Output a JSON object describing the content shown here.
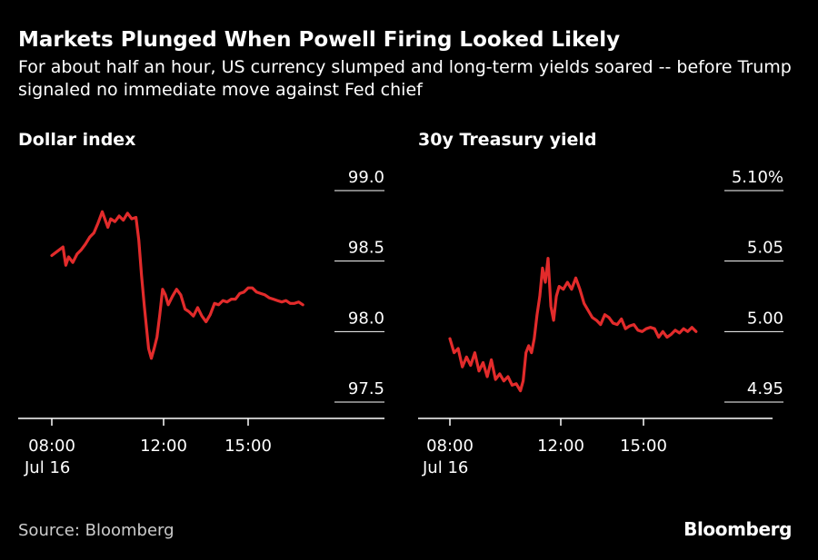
{
  "title": "Markets Plunged When Powell Firing Looked Likely",
  "subtitle": "For about half an hour, US currency slumped and long-term yields soared -- before Trump signaled no immediate move against Fed chief",
  "source": "Source: Bloomberg",
  "brand": "Bloomberg",
  "colors": {
    "background": "#000000",
    "line": "#e22b2b",
    "axis": "#ffffff",
    "text": "#ffffff"
  },
  "chart_data": [
    {
      "type": "line",
      "title": "Dollar index",
      "y_ticks": [
        "99.0",
        "98.5",
        "98.0",
        "97.5"
      ],
      "y_tick_values": [
        99.0,
        98.5,
        98.0,
        97.5
      ],
      "ylim": [
        97.5,
        99.0
      ],
      "x_ticks": [
        {
          "label": "08:00",
          "sublabel": "Jul 16",
          "hour": 8
        },
        {
          "label": "12:00",
          "sublabel": "",
          "hour": 12
        },
        {
          "label": "15:00",
          "sublabel": "",
          "hour": 15
        }
      ],
      "xlim": [
        6.9,
        19.3
      ],
      "grid": "horizontal-ticks-right",
      "series": [
        {
          "x": [
            8.0,
            8.2,
            8.4,
            8.5,
            8.6,
            8.75,
            8.9,
            9.05,
            9.2,
            9.35,
            9.5,
            9.65,
            9.8,
            10.0,
            10.1,
            10.25,
            10.4,
            10.55,
            10.7,
            10.85,
            11.0,
            11.1,
            11.2,
            11.3,
            11.38,
            11.45,
            11.55,
            11.65,
            11.75,
            11.85,
            11.95,
            12.05,
            12.15,
            12.3,
            12.45,
            12.6,
            12.75,
            12.9,
            13.05,
            13.2,
            13.35,
            13.5,
            13.65,
            13.8,
            13.95,
            14.1,
            14.25,
            14.4,
            14.55,
            14.7,
            14.85,
            15.0,
            15.15,
            15.3,
            15.45,
            15.6,
            15.75,
            15.9,
            16.05,
            16.2,
            16.35,
            16.5,
            16.65,
            16.8,
            16.95
          ],
          "y": [
            98.54,
            98.57,
            98.6,
            98.47,
            98.53,
            98.49,
            98.55,
            98.58,
            98.62,
            98.67,
            98.7,
            98.77,
            98.85,
            98.74,
            98.8,
            98.78,
            98.82,
            98.79,
            98.84,
            98.8,
            98.81,
            98.65,
            98.4,
            98.18,
            98.02,
            97.88,
            97.81,
            97.88,
            97.96,
            98.12,
            98.3,
            98.26,
            98.19,
            98.25,
            98.3,
            98.26,
            98.16,
            98.14,
            98.11,
            98.17,
            98.11,
            98.07,
            98.12,
            98.2,
            98.19,
            98.22,
            98.21,
            98.23,
            98.23,
            98.27,
            98.28,
            98.31,
            98.31,
            98.28,
            98.27,
            98.26,
            98.24,
            98.23,
            98.22,
            98.21,
            98.22,
            98.2,
            98.2,
            98.21,
            98.19
          ]
        }
      ]
    },
    {
      "type": "line",
      "title": "30y Treasury yield",
      "y_ticks": [
        "5.10%",
        "5.05",
        "5.00",
        "4.95"
      ],
      "y_tick_values": [
        5.1,
        5.05,
        5.0,
        4.95
      ],
      "ylim": [
        4.95,
        5.1
      ],
      "x_ticks": [
        {
          "label": "08:00",
          "sublabel": "Jul 16",
          "hour": 8
        },
        {
          "label": "12:00",
          "sublabel": "",
          "hour": 12
        },
        {
          "label": "15:00",
          "sublabel": "",
          "hour": 15
        }
      ],
      "xlim": [
        6.9,
        19.3
      ],
      "grid": "horizontal-ticks-right",
      "series": [
        {
          "x": [
            8.0,
            8.15,
            8.3,
            8.45,
            8.6,
            8.75,
            8.9,
            9.05,
            9.2,
            9.35,
            9.5,
            9.65,
            9.8,
            9.95,
            10.1,
            10.25,
            10.4,
            10.55,
            10.65,
            10.75,
            10.85,
            10.95,
            11.05,
            11.15,
            11.25,
            11.35,
            11.45,
            11.55,
            11.65,
            11.75,
            11.85,
            11.95,
            12.1,
            12.25,
            12.4,
            12.55,
            12.7,
            12.85,
            13.0,
            13.15,
            13.3,
            13.45,
            13.6,
            13.75,
            13.9,
            14.05,
            14.2,
            14.35,
            14.5,
            14.65,
            14.8,
            14.95,
            15.1,
            15.25,
            15.4,
            15.55,
            15.7,
            15.85,
            16.0,
            16.15,
            16.3,
            16.45,
            16.6,
            16.75,
            16.9
          ],
          "y": [
            4.995,
            4.985,
            4.988,
            4.975,
            4.982,
            4.976,
            4.985,
            4.972,
            4.978,
            4.968,
            4.98,
            4.966,
            4.97,
            4.965,
            4.968,
            4.962,
            4.963,
            4.958,
            4.965,
            4.985,
            4.99,
            4.985,
            4.995,
            5.012,
            5.025,
            5.045,
            5.035,
            5.052,
            5.018,
            5.008,
            5.025,
            5.032,
            5.03,
            5.035,
            5.03,
            5.038,
            5.03,
            5.02,
            5.015,
            5.01,
            5.008,
            5.005,
            5.012,
            5.01,
            5.006,
            5.005,
            5.009,
            5.002,
            5.004,
            5.005,
            5.001,
            5.0,
            5.002,
            5.003,
            5.002,
            4.996,
            5.0,
            4.996,
            4.998,
            5.001,
            4.999,
            5.002,
            5.0,
            5.003,
            5.0
          ]
        }
      ]
    }
  ]
}
